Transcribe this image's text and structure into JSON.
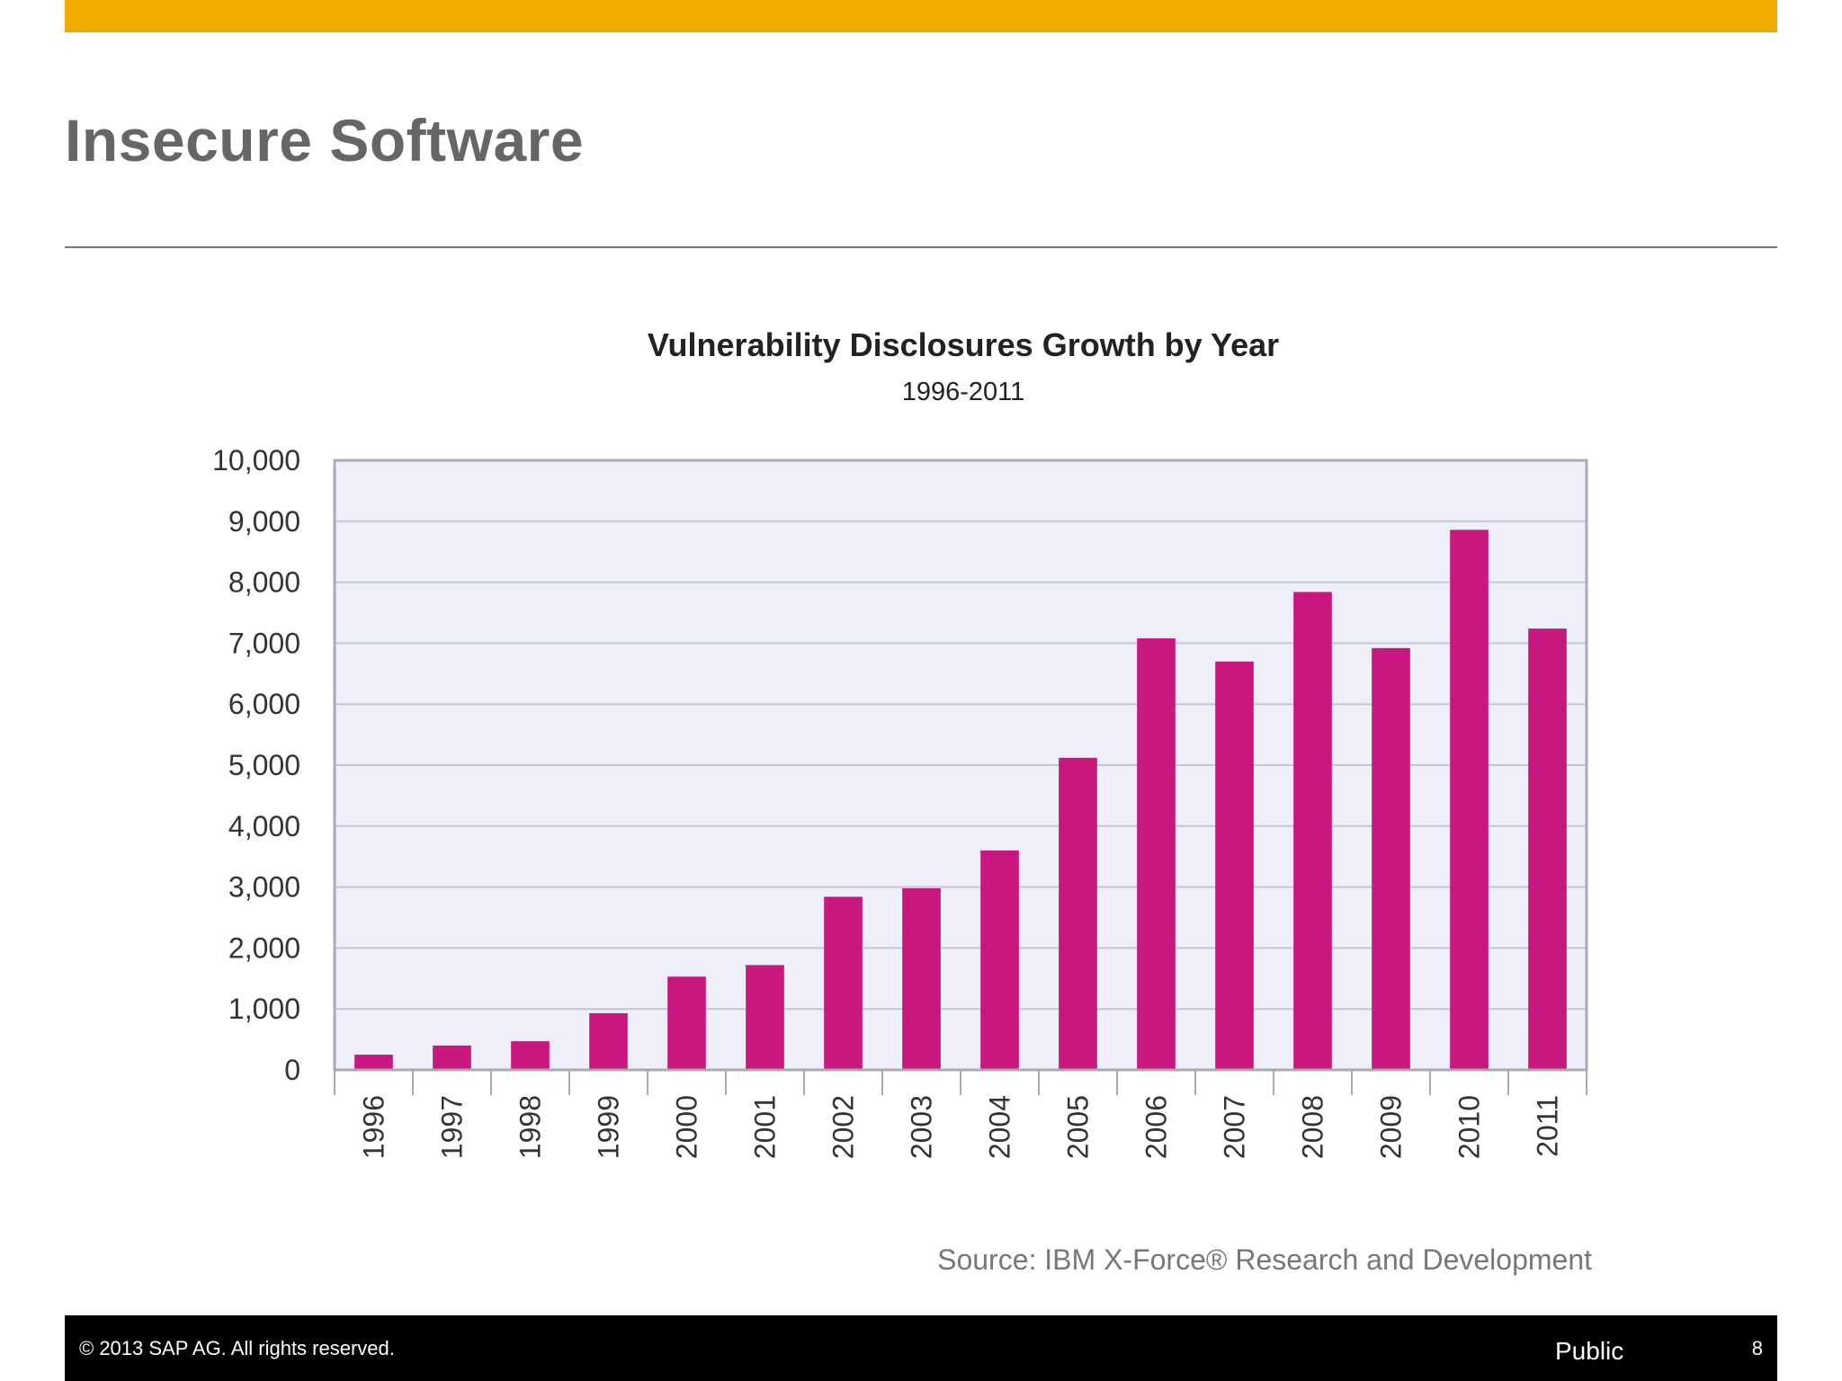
{
  "slide": {
    "title": "Insecure Software",
    "accent_color": "#F0AB00",
    "source": "Source: IBM X-Force® Research and Development"
  },
  "footer": {
    "copyright": "©  2013 SAP AG. All rights reserved.",
    "classification": "Public",
    "page_number": "8"
  },
  "chart_data": {
    "type": "bar",
    "title": "Vulnerability Disclosures Growth by Year",
    "subtitle": "1996-2011",
    "xlabel": "",
    "ylabel": "",
    "ylim": [
      0,
      10000
    ],
    "y_ticks": [
      0,
      1000,
      2000,
      3000,
      4000,
      5000,
      6000,
      7000,
      8000,
      9000,
      10000
    ],
    "y_tick_labels": [
      "0",
      "1,000",
      "2,000",
      "3,000",
      "4,000",
      "5,000",
      "6,000",
      "7,000",
      "8,000",
      "9,000",
      "10,000"
    ],
    "categories": [
      "1996",
      "1997",
      "1998",
      "1999",
      "2000",
      "2001",
      "2002",
      "2003",
      "2004",
      "2005",
      "2006",
      "2007",
      "2008",
      "2009",
      "2010",
      "2011"
    ],
    "values": [
      250,
      400,
      470,
      930,
      1530,
      1720,
      2840,
      2980,
      3600,
      5120,
      7080,
      6700,
      7840,
      6920,
      8860,
      7240
    ],
    "grid": true,
    "legend": "none",
    "bar_color": "#C8177F",
    "plot_background": "#EEEFF8",
    "gridline_color": "#C4C6D4"
  }
}
